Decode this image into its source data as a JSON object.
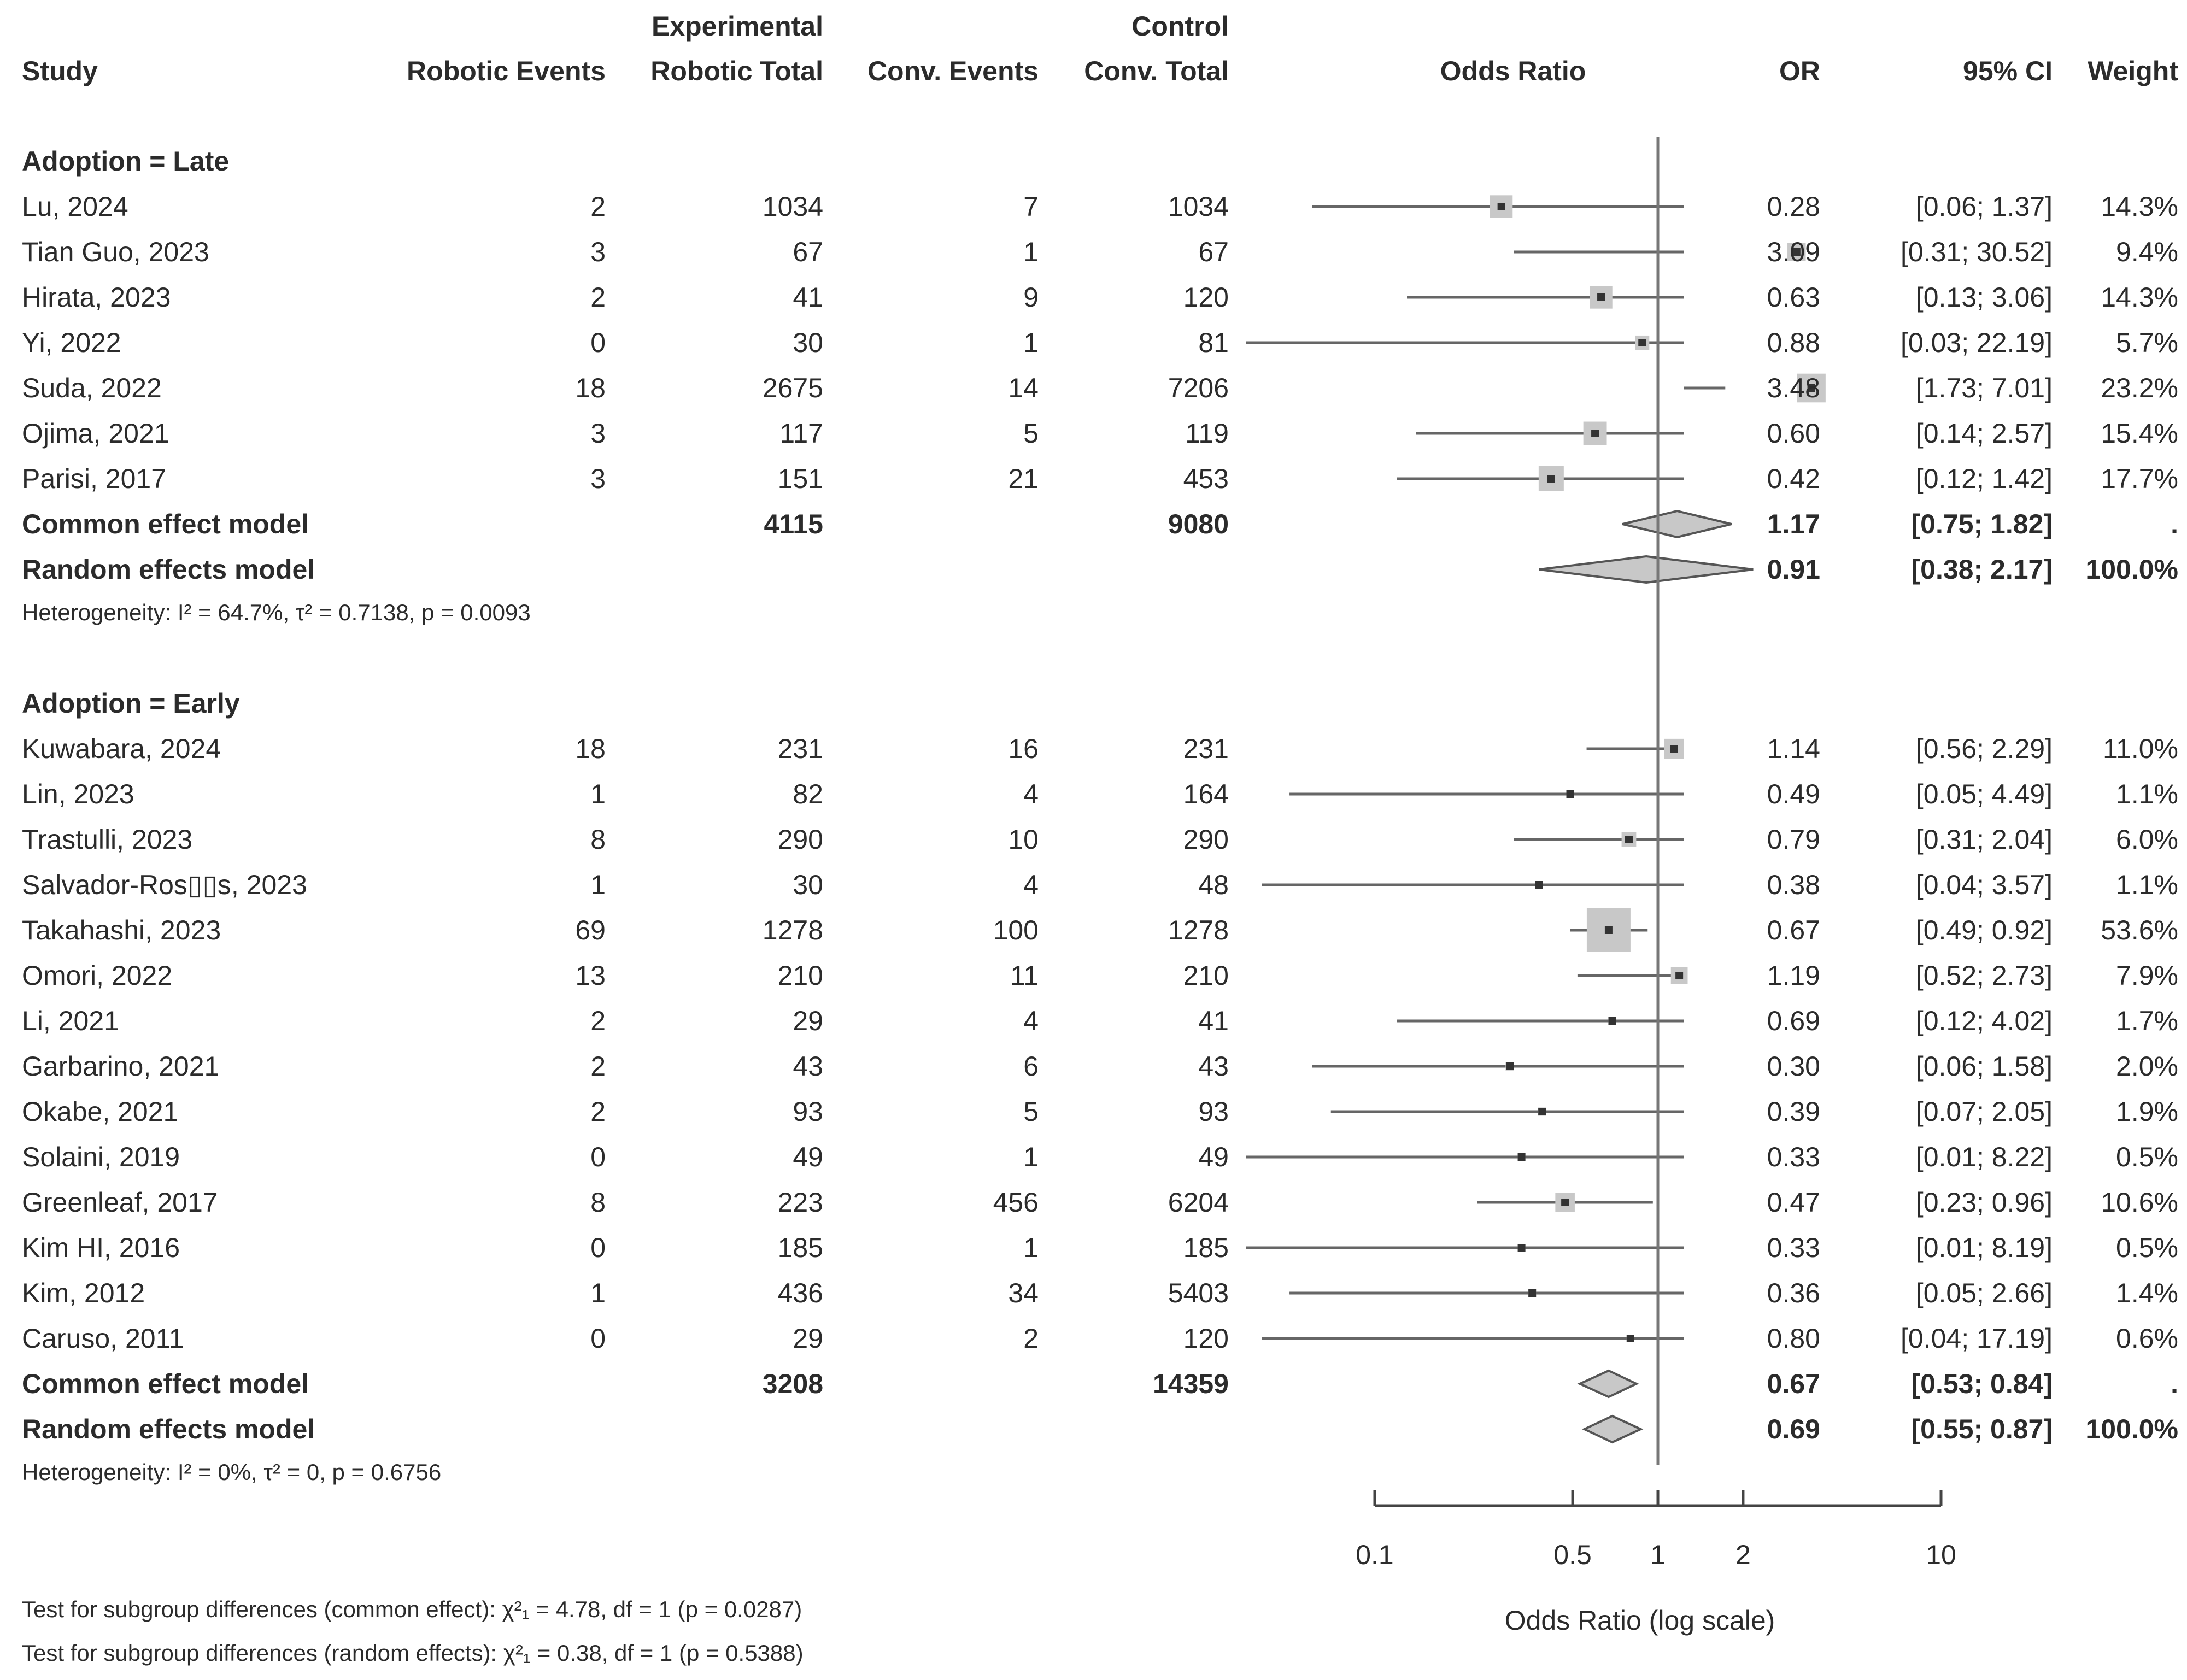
{
  "headers": {
    "experimental": "Experimental",
    "control": "Control",
    "study": "Study",
    "robotic_events": "Robotic Events",
    "robotic_total": "Robotic Total",
    "conv_events": "Conv. Events",
    "conv_total": "Conv. Total",
    "odds_ratio": "Odds Ratio",
    "or": "OR",
    "ci": "95% CI",
    "weight": "Weight"
  },
  "chart_data": {
    "type": "forest",
    "xlabel": "Odds Ratio (log scale)",
    "x_scale": "log",
    "x_ticks": [
      "0.1",
      "0.5",
      "1",
      "2",
      "10"
    ],
    "x_tick_values": [
      0.1,
      0.5,
      1,
      2,
      10
    ],
    "xlim": [
      0.078,
      13.5
    ],
    "reference_line": 1,
    "groups": [
      {
        "label": "Adoption  = Late",
        "studies": [
          {
            "study": "Lu, 2024",
            "re": "2",
            "rt": "1034",
            "ce": "7",
            "ct": "1034",
            "or": 0.28,
            "lo": 0.06,
            "hi": 1.37,
            "or_text": "0.28",
            "ci_text": "[0.06;  1.37]",
            "weight": "14.3%"
          },
          {
            "study": "Tian Guo, 2023",
            "re": "3",
            "rt": "67",
            "ce": "1",
            "ct": "67",
            "or": 3.09,
            "lo": 0.31,
            "hi": 30.52,
            "or_text": "3.09",
            "ci_text": "[0.31; 30.52]",
            "weight": "9.4%"
          },
          {
            "study": "Hirata, 2023",
            "re": "2",
            "rt": "41",
            "ce": "9",
            "ct": "120",
            "or": 0.63,
            "lo": 0.13,
            "hi": 3.06,
            "or_text": "0.63",
            "ci_text": "[0.13;  3.06]",
            "weight": "14.3%"
          },
          {
            "study": "Yi, 2022",
            "re": "0",
            "rt": "30",
            "ce": "1",
            "ct": "81",
            "or": 0.88,
            "lo": 0.03,
            "hi": 22.19,
            "or_text": "0.88",
            "ci_text": "[0.03; 22.19]",
            "weight": "5.7%"
          },
          {
            "study": "Suda, 2022",
            "re": "18",
            "rt": "2675",
            "ce": "14",
            "ct": "7206",
            "or": 3.48,
            "lo": 1.73,
            "hi": 7.01,
            "or_text": "3.48",
            "ci_text": "[1.73;  7.01]",
            "weight": "23.2%"
          },
          {
            "study": "Ojima, 2021",
            "re": "3",
            "rt": "117",
            "ce": "5",
            "ct": "119",
            "or": 0.6,
            "lo": 0.14,
            "hi": 2.57,
            "or_text": "0.60",
            "ci_text": "[0.14;  2.57]",
            "weight": "15.4%"
          },
          {
            "study": "Parisi, 2017",
            "re": "3",
            "rt": "151",
            "ce": "21",
            "ct": "453",
            "or": 0.42,
            "lo": 0.12,
            "hi": 1.42,
            "or_text": "0.42",
            "ci_text": "[0.12;  1.42]",
            "weight": "17.7%"
          }
        ],
        "common": {
          "label": "Common effect model",
          "rt": "4115",
          "ct": "9080",
          "or": 1.17,
          "lo": 0.75,
          "hi": 1.82,
          "or_text": "1.17",
          "ci_text": "[0.75;  1.82]",
          "weight": "."
        },
        "random": {
          "label": "Random effects model",
          "or": 0.91,
          "lo": 0.38,
          "hi": 2.17,
          "or_text": "0.91",
          "ci_text": "[0.38;  2.17]",
          "weight": "100.0%"
        },
        "heterogeneity": "Heterogeneity: I² = 64.7%, τ² = 0.7138, p = 0.0093"
      },
      {
        "label": "Adoption  = Early",
        "studies": [
          {
            "study": "Kuwabara, 2024",
            "re": "18",
            "rt": "231",
            "ce": "16",
            "ct": "231",
            "or": 1.14,
            "lo": 0.56,
            "hi": 2.29,
            "or_text": "1.14",
            "ci_text": "[0.56;  2.29]",
            "weight": "11.0%"
          },
          {
            "study": "Lin, 2023",
            "re": "1",
            "rt": "82",
            "ce": "4",
            "ct": "164",
            "or": 0.49,
            "lo": 0.05,
            "hi": 4.49,
            "or_text": "0.49",
            "ci_text": "[0.05;  4.49]",
            "weight": "1.1%"
          },
          {
            "study": "Trastulli, 2023",
            "re": "8",
            "rt": "290",
            "ce": "10",
            "ct": "290",
            "or": 0.79,
            "lo": 0.31,
            "hi": 2.04,
            "or_text": "0.79",
            "ci_text": "[0.31;  2.04]",
            "weight": "6.0%"
          },
          {
            "study": "Salvador-Ros▯▯s, 2023",
            "re": "1",
            "rt": "30",
            "ce": "4",
            "ct": "48",
            "or": 0.38,
            "lo": 0.04,
            "hi": 3.57,
            "or_text": "0.38",
            "ci_text": "[0.04;  3.57]",
            "weight": "1.1%"
          },
          {
            "study": "Takahashi, 2023",
            "re": "69",
            "rt": "1278",
            "ce": "100",
            "ct": "1278",
            "or": 0.67,
            "lo": 0.49,
            "hi": 0.92,
            "or_text": "0.67",
            "ci_text": "[0.49;  0.92]",
            "weight": "53.6%"
          },
          {
            "study": "Omori, 2022",
            "re": "13",
            "rt": "210",
            "ce": "11",
            "ct": "210",
            "or": 1.19,
            "lo": 0.52,
            "hi": 2.73,
            "or_text": "1.19",
            "ci_text": "[0.52;  2.73]",
            "weight": "7.9%"
          },
          {
            "study": "Li, 2021",
            "re": "2",
            "rt": "29",
            "ce": "4",
            "ct": "41",
            "or": 0.69,
            "lo": 0.12,
            "hi": 4.02,
            "or_text": "0.69",
            "ci_text": "[0.12;  4.02]",
            "weight": "1.7%"
          },
          {
            "study": "Garbarino, 2021",
            "re": "2",
            "rt": "43",
            "ce": "6",
            "ct": "43",
            "or": 0.3,
            "lo": 0.06,
            "hi": 1.58,
            "or_text": "0.30",
            "ci_text": "[0.06;  1.58]",
            "weight": "2.0%"
          },
          {
            "study": "Okabe, 2021",
            "re": "2",
            "rt": "93",
            "ce": "5",
            "ct": "93",
            "or": 0.39,
            "lo": 0.07,
            "hi": 2.05,
            "or_text": "0.39",
            "ci_text": "[0.07;  2.05]",
            "weight": "1.9%"
          },
          {
            "study": "Solaini, 2019",
            "re": "0",
            "rt": "49",
            "ce": "1",
            "ct": "49",
            "or": 0.33,
            "lo": 0.01,
            "hi": 8.22,
            "or_text": "0.33",
            "ci_text": "[0.01;  8.22]",
            "weight": "0.5%"
          },
          {
            "study": "Greenleaf, 2017",
            "re": "8",
            "rt": "223",
            "ce": "456",
            "ct": "6204",
            "or": 0.47,
            "lo": 0.23,
            "hi": 0.96,
            "or_text": "0.47",
            "ci_text": "[0.23;  0.96]",
            "weight": "10.6%"
          },
          {
            "study": "Kim HI, 2016",
            "re": "0",
            "rt": "185",
            "ce": "1",
            "ct": "185",
            "or": 0.33,
            "lo": 0.01,
            "hi": 8.19,
            "or_text": "0.33",
            "ci_text": "[0.01;  8.19]",
            "weight": "0.5%"
          },
          {
            "study": "Kim, 2012",
            "re": "1",
            "rt": "436",
            "ce": "34",
            "ct": "5403",
            "or": 0.36,
            "lo": 0.05,
            "hi": 2.66,
            "or_text": "0.36",
            "ci_text": "[0.05;  2.66]",
            "weight": "1.4%"
          },
          {
            "study": "Caruso, 2011",
            "re": "0",
            "rt": "29",
            "ce": "2",
            "ct": "120",
            "or": 0.8,
            "lo": 0.04,
            "hi": 17.19,
            "or_text": "0.80",
            "ci_text": "[0.04; 17.19]",
            "weight": "0.6%"
          }
        ],
        "common": {
          "label": "Common effect model",
          "rt": "3208",
          "ct": "14359",
          "or": 0.67,
          "lo": 0.53,
          "hi": 0.84,
          "or_text": "0.67",
          "ci_text": "[0.53;  0.84]",
          "weight": "."
        },
        "random": {
          "label": "Random effects model",
          "or": 0.69,
          "lo": 0.55,
          "hi": 0.87,
          "or_text": "0.69",
          "ci_text": "[0.55;  0.87]",
          "weight": "100.0%"
        },
        "heterogeneity": "Heterogeneity: I² = 0%, τ² = 0, p = 0.6756"
      }
    ],
    "subgroup_tests": [
      "Test for subgroup differences (common effect): χ²₁ = 4.78, df = 1 (p = 0.0287)",
      "Test for subgroup differences (random effects): χ²₁ = 0.38, df = 1 (p = 0.5388)"
    ]
  }
}
